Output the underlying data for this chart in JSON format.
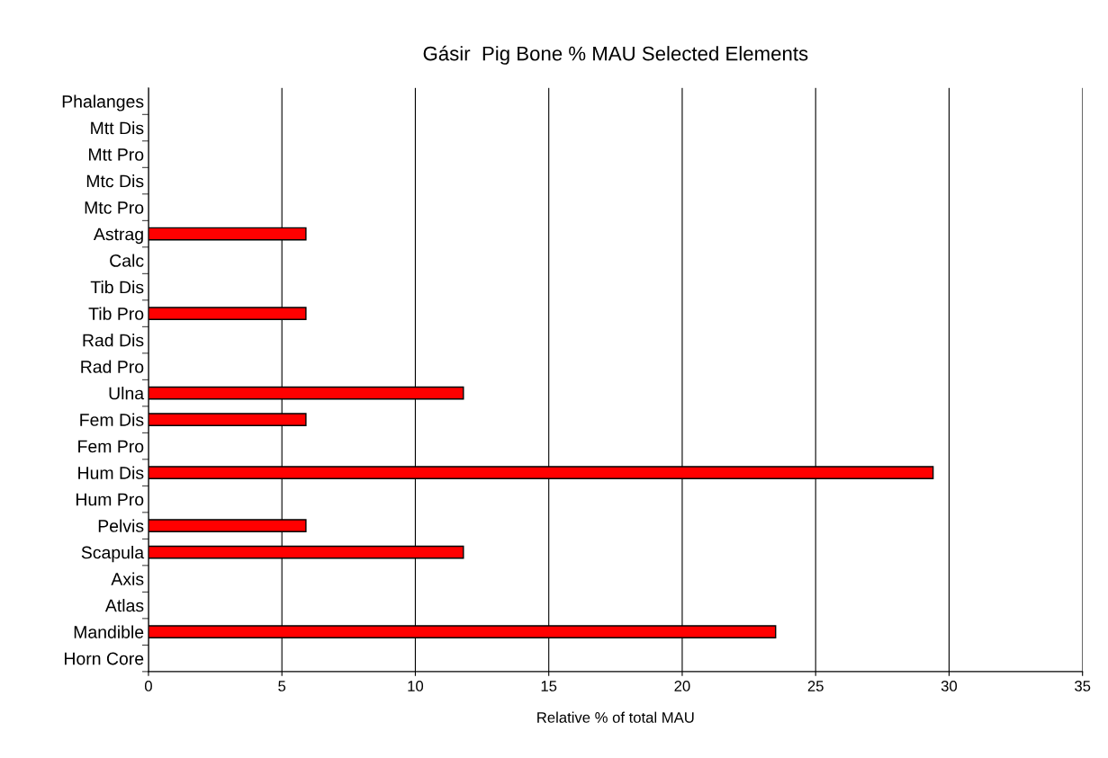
{
  "chart_data": {
    "type": "bar",
    "orientation": "horizontal",
    "title": "Gásir  Pig Bone % MAU Selected Elements",
    "xlabel": "Relative % of total MAU",
    "categories": [
      "Phalanges",
      "Mtt Dis",
      "Mtt Pro",
      "Mtc Dis",
      "Mtc Pro",
      "Astrag",
      "Calc",
      "Tib Dis",
      "Tib Pro",
      "Rad Dis",
      "Rad Pro",
      "Ulna",
      "Fem Dis",
      "Fem Pro",
      "Hum Dis",
      "Hum Pro",
      "Pelvis",
      "Scapula",
      "Axis",
      "Atlas",
      "Mandible",
      "Horn Core"
    ],
    "values": [
      null,
      null,
      null,
      null,
      null,
      5.9,
      null,
      null,
      5.9,
      null,
      null,
      11.8,
      5.9,
      null,
      29.4,
      null,
      5.9,
      11.8,
      null,
      null,
      23.5,
      null
    ],
    "color": "#ff0000",
    "xlim": [
      0,
      35
    ],
    "xticks": [
      0,
      5,
      10,
      15,
      20,
      25,
      30,
      35
    ],
    "grid": "x"
  }
}
